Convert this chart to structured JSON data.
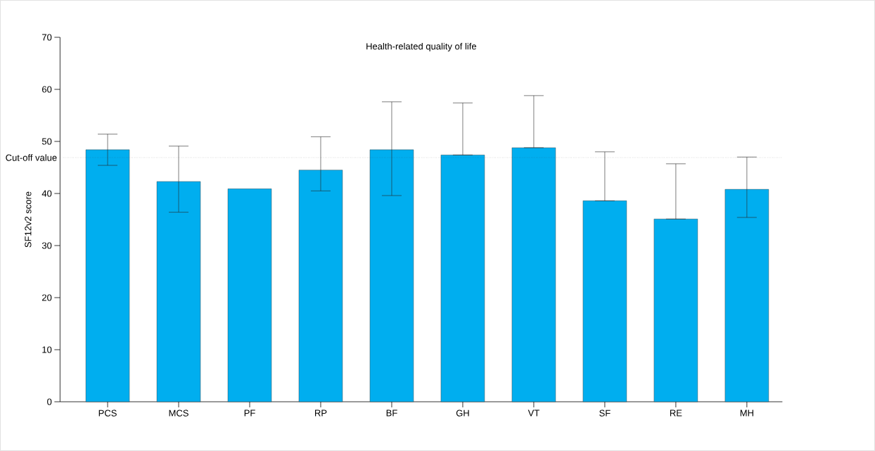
{
  "chart_data": {
    "type": "bar",
    "title": "Health-related quality of life",
    "ylabel": "SF12v2 score",
    "categories": [
      "PCS",
      "MCS",
      "PF",
      "RP",
      "BF",
      "GH",
      "VT",
      "SF",
      "RE",
      "MH"
    ],
    "values": [
      48.4,
      42.3,
      40.9,
      44.5,
      48.4,
      47.4,
      48.8,
      38.6,
      35.1,
      40.8
    ],
    "errors": [
      [
        45.4,
        51.4
      ],
      [
        36.4,
        49.1
      ],
      null,
      [
        40.5,
        50.9
      ],
      [
        39.6,
        57.6
      ],
      [
        47.4,
        57.4
      ],
      [
        48.8,
        58.8
      ],
      [
        38.6,
        48.0
      ],
      [
        35.1,
        45.7
      ],
      [
        35.4,
        47.0
      ]
    ],
    "color": "#00aeef",
    "ylim": [
      0,
      70
    ],
    "yticks": [
      0,
      10,
      20,
      30,
      40,
      50,
      60,
      70
    ],
    "ref_lines": [
      {
        "axis": "y",
        "value": 46.9,
        "label": "Cut-off value",
        "line_style": "dotted"
      }
    ]
  }
}
